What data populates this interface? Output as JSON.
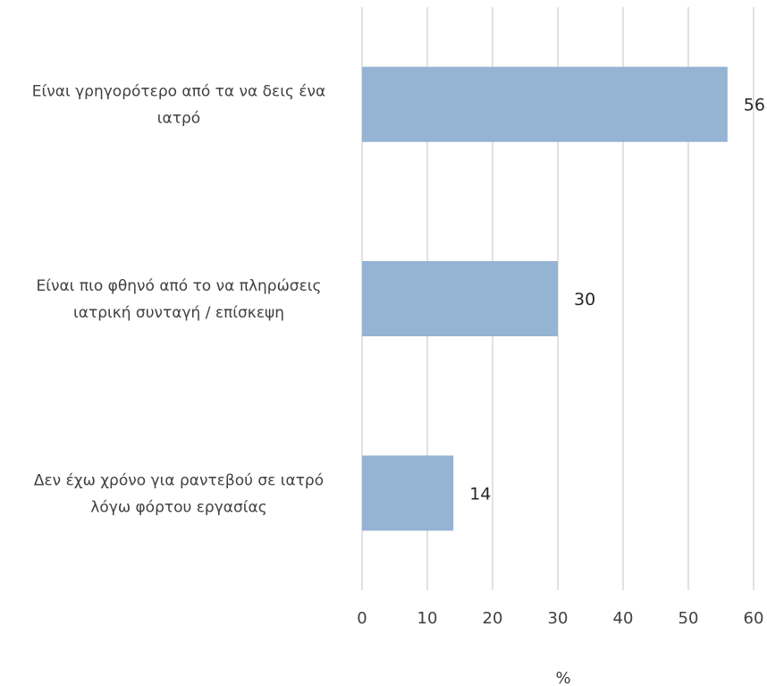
{
  "chart_data": {
    "type": "bar",
    "orientation": "horizontal",
    "categories": [
      [
        "Είναι γρηγορότερο από τα να δεις ένα",
        "ιατρό"
      ],
      [
        "Είναι πιο φθηνό από το να πληρώσεις",
        "ιατρική συνταγή / επίσκεψη"
      ],
      [
        "Δεν έχω χρόνο για ραντεβού σε ιατρό",
        "λόγω φόρτου εργασίας"
      ]
    ],
    "values": [
      56,
      30,
      14
    ],
    "data_labels": [
      "56",
      "30",
      "14"
    ],
    "xlim": [
      0,
      60
    ],
    "xticks": [
      0,
      10,
      20,
      30,
      40,
      50,
      60
    ],
    "xtick_labels": [
      "0",
      "10",
      "20",
      "30",
      "40",
      "50",
      "60"
    ],
    "xlabel": "%",
    "grid": "vertical",
    "bar_color": "#95b3d2",
    "grid_color": "#d9d9d9"
  }
}
